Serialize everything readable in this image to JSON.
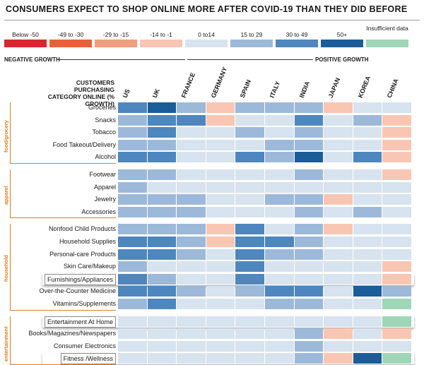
{
  "title": "CONSUMERS EXPECT TO SHOP ONLINE MORE AFTER COVID-19 THAN THEY DID BEFORE",
  "legend": [
    {
      "label": "Below -50",
      "color": "#d7262e"
    },
    {
      "label": "-49 to -30",
      "color": "#e8603a"
    },
    {
      "label": "-29 to -15",
      "color": "#f29c80"
    },
    {
      "label": "-14 to -1",
      "color": "#f9c6b3"
    },
    {
      "label": "0 to14",
      "color": "#d7e3ef"
    },
    {
      "label": "15 to 29",
      "color": "#9db9da"
    },
    {
      "label": "30 to 49",
      "color": "#4e86be"
    },
    {
      "label": "50+",
      "color": "#1b5d98"
    },
    {
      "label": "Insufficient data",
      "color": "#9fd6b8"
    }
  ],
  "negative_label": "NEGATIVE GROWTH",
  "positive_label": "POSITIVE GROWTH",
  "axis_title": "CUSTOMERS PURCHASING CATEGORY ONLINE (% GROWTH)",
  "chart_data": {
    "type": "heatmap",
    "title": "CONSUMERS EXPECT TO SHOP ONLINE MORE AFTER COVID-19 THAN THEY DID BEFORE",
    "columns": [
      "US",
      "UK",
      "FRANCE",
      "GERMANY",
      "SPAIN",
      "ITALY",
      "INDIA",
      "JAPAN",
      "KOREA",
      "CHINA"
    ],
    "bins": [
      "Below -50",
      "-49 to -30",
      "-29 to -15",
      "-14 to -1",
      "0 to14",
      "15 to 29",
      "30 to 49",
      "50+",
      "Insufficient data"
    ],
    "groups": [
      {
        "name": "food/grocery",
        "rows": [
          {
            "label": "Groceries",
            "bins": [
              "30 to 49",
              "50+",
              "15 to 29",
              "-14 to -1",
              "15 to 29",
              "15 to 29",
              "15 to 29",
              "-14 to -1",
              "0 to14",
              "0 to14"
            ]
          },
          {
            "label": "Snacks",
            "bins": [
              "15 to 29",
              "30 to 49",
              "30 to 49",
              "-14 to -1",
              "0 to14",
              "0 to14",
              "30 to 49",
              "0 to14",
              "15 to 29",
              "-14 to -1"
            ]
          },
          {
            "label": "Tobacco",
            "bins": [
              "15 to 29",
              "30 to 49",
              "0 to14",
              "0 to14",
              "15 to 29",
              "0 to14",
              "15 to 29",
              "0 to14",
              "0 to14",
              "-14 to -1"
            ]
          },
          {
            "label": "Food Takeout/Delivery",
            "bins": [
              "15 to 29",
              "15 to 29",
              "0 to14",
              "0 to14",
              "0 to14",
              "15 to 29",
              "15 to 29",
              "0 to14",
              "0 to14",
              "-14 to -1"
            ]
          },
          {
            "label": "Alcohol",
            "bins": [
              "30 to 49",
              "30 to 49",
              "0 to14",
              "0 to14",
              "30 to 49",
              "15 to 29",
              "50+",
              "0 to14",
              "30 to 49",
              "-14 to -1"
            ]
          }
        ]
      },
      {
        "name": "apparel",
        "rows": [
          {
            "label": "Footwear",
            "bins": [
              "15 to 29",
              "15 to 29",
              "0 to14",
              "0 to14",
              "0 to14",
              "0 to14",
              "15 to 29",
              "0 to14",
              "0 to14",
              "-14 to -1"
            ]
          },
          {
            "label": "Apparel",
            "bins": [
              "15 to 29",
              "0 to14",
              "0 to14",
              "0 to14",
              "0 to14",
              "0 to14",
              "0 to14",
              "0 to14",
              "0 to14",
              "0 to14"
            ]
          },
          {
            "label": "Jewelry",
            "bins": [
              "15 to 29",
              "15 to 29",
              "15 to 29",
              "0 to14",
              "0 to14",
              "15 to 29",
              "15 to 29",
              "-14 to -1",
              "0 to14",
              "0 to14"
            ]
          },
          {
            "label": "Accessories",
            "bins": [
              "15 to 29",
              "15 to 29",
              "15 to 29",
              "0 to14",
              "0 to14",
              "0 to14",
              "15 to 29",
              "0 to14",
              "15 to 29",
              "0 to14"
            ]
          }
        ]
      },
      {
        "name": "household",
        "rows": [
          {
            "label": "Nonfood Child Products",
            "bins": [
              "15 to 29",
              "15 to 29",
              "15 to 29",
              "-14 to -1",
              "30 to 49",
              "0 to14",
              "15 to 29",
              "-14 to -1",
              "0 to14",
              "0 to14"
            ]
          },
          {
            "label": "Household Supplies",
            "bins": [
              "30 to 49",
              "30 to 49",
              "15 to 29",
              "-14 to -1",
              "30 to 49",
              "30 to 49",
              "15 to 29",
              "0 to14",
              "0 to14",
              "0 to14"
            ]
          },
          {
            "label": "Personal-care Products",
            "bins": [
              "30 to 49",
              "30 to 49",
              "15 to 29",
              "0 to14",
              "30 to 49",
              "15 to 29",
              "15 to 29",
              "0 to14",
              "0 to14",
              "0 to14"
            ]
          },
          {
            "label": "Skin Care/Makeup",
            "bins": [
              "15 to 29",
              "0 to14",
              "0 to14",
              "0 to14",
              "30 to 49",
              "0 to14",
              "0 to14",
              "0 to14",
              "0 to14",
              "-14 to -1"
            ]
          },
          {
            "label": "Furnishings/Appliances",
            "bins": [
              "30 to 49",
              "15 to 29",
              "0 to14",
              "0 to14",
              "30 to 49",
              "0 to14",
              "0 to14",
              "0 to14",
              "0 to14",
              "-14 to -1"
            ]
          },
          {
            "label": "Over-the-Counter Medicine",
            "bins": [
              "30 to 49",
              "30 to 49",
              "15 to 29",
              "0 to14",
              "15 to 29",
              "30 to 49",
              "30 to 49",
              "0 to14",
              "50+",
              "15 to 29"
            ]
          },
          {
            "label": "Vitamins/Supplements",
            "bins": [
              "15 to 29",
              "30 to 49",
              "0 to14",
              "0 to14",
              "0 to14",
              "15 to 29",
              "15 to 29",
              "0 to14",
              "0 to14",
              "Insufficient data"
            ]
          }
        ]
      },
      {
        "name": "entertainment",
        "rows": [
          {
            "label": "Entertainment At Home",
            "bins": [
              "0 to14",
              "0 to14",
              "0 to14",
              "0 to14",
              "0 to14",
              "0 to14",
              "0 to14",
              "0 to14",
              "0 to14",
              "Insufficient data"
            ]
          },
          {
            "label": "Books/Magazines/Newspapers",
            "bins": [
              "0 to14",
              "0 to14",
              "0 to14",
              "0 to14",
              "0 to14",
              "0 to14",
              "15 to 29",
              "-14 to -1",
              "0 to14",
              "-14 to -1"
            ]
          },
          {
            "label": "Consumer Electronics",
            "bins": [
              "0 to14",
              "0 to14",
              "0 to14",
              "0 to14",
              "0 to14",
              "0 to14",
              "15 to 29",
              "0 to14",
              "0 to14",
              "0 to14"
            ]
          },
          {
            "label": "Fitness /Wellness",
            "bins": [
              "0 to14",
              "0 to14",
              "0 to14",
              "0 to14",
              "0 to14",
              "0 to14",
              "15 to 29",
              "-14 to -1",
              "50+",
              "Insufficient data"
            ]
          }
        ]
      }
    ]
  }
}
